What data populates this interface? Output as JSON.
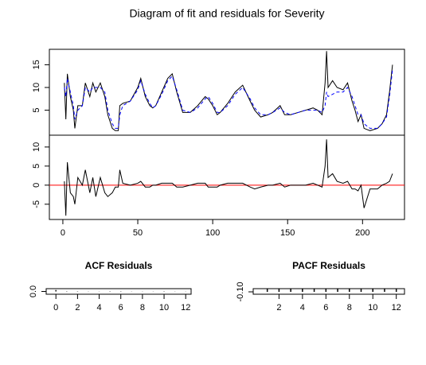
{
  "title": "Diagram of fit and residuals for Severity",
  "chart_data": [
    {
      "type": "line",
      "xlim": [
        -9,
        228
      ],
      "ylim": [
        -0.5,
        18.4
      ],
      "yticks": [
        5,
        10,
        15
      ],
      "x": [
        1,
        2,
        3,
        5,
        7,
        8,
        10,
        13,
        15,
        18,
        20,
        22,
        25,
        28,
        30,
        33,
        35,
        37,
        38,
        40,
        45,
        50,
        52,
        55,
        58,
        60,
        62,
        66,
        70,
        73,
        76,
        80,
        85,
        90,
        95,
        97,
        100,
        103,
        105,
        110,
        115,
        120,
        125,
        128,
        132,
        137,
        140,
        145,
        148,
        152,
        157,
        162,
        167,
        170,
        173,
        175,
        176,
        177,
        180,
        183,
        187,
        190,
        193,
        195,
        197,
        199,
        201,
        205,
        210,
        213,
        216,
        218,
        220
      ],
      "series": [
        {
          "color": "#000000",
          "dash": false,
          "values": [
            11,
            3,
            13,
            8,
            5,
            1,
            6,
            6,
            11,
            8,
            11,
            9,
            11,
            8,
            4,
            1,
            0.5,
            0.5,
            6,
            6.5,
            7,
            10,
            12,
            8,
            6,
            5.5,
            6,
            9,
            12,
            13,
            9,
            4.5,
            4.5,
            6,
            8,
            7.5,
            6,
            4,
            4.5,
            6.5,
            9,
            10.5,
            7,
            5,
            3.5,
            4,
            4.5,
            6,
            4,
            4,
            4.5,
            5,
            5.5,
            5,
            4,
            11,
            18,
            10,
            11.5,
            10,
            9.5,
            11,
            7,
            5,
            2.5,
            4,
            1,
            0.5,
            1,
            2,
            4,
            9,
            15
          ]
        },
        {
          "color": "#0000ff",
          "dash": true,
          "values": [
            10,
            8,
            12,
            9,
            6,
            3,
            5,
            6,
            10,
            9,
            10,
            10,
            10,
            9,
            5,
            2,
            1,
            1,
            4,
            6,
            7,
            9.5,
            11.5,
            8.5,
            6.5,
            5.5,
            6,
            8.5,
            11.5,
            12.5,
            9.5,
            5,
            4.5,
            5.5,
            7.5,
            8,
            6.5,
            4.5,
            4.5,
            6,
            8.5,
            10,
            7.5,
            5.5,
            4,
            4,
            4.5,
            5.5,
            4.5,
            4,
            4.5,
            5,
            5,
            5,
            4.5,
            6,
            9,
            8,
            8.5,
            9,
            9,
            10,
            8,
            6,
            4,
            4,
            2,
            1,
            1,
            2,
            3.5,
            8,
            14
          ]
        }
      ]
    },
    {
      "type": "line",
      "xlim": [
        -9,
        228
      ],
      "ylim": [
        -9,
        13.1
      ],
      "yticks": [
        -5,
        0,
        5,
        10
      ],
      "xticks": [
        0,
        50,
        100,
        150,
        200
      ],
      "reference_line": {
        "value": 0,
        "color": "#ff0000"
      },
      "x": [
        1,
        2,
        3,
        5,
        7,
        8,
        10,
        13,
        15,
        18,
        20,
        22,
        25,
        28,
        30,
        33,
        35,
        37,
        38,
        40,
        45,
        50,
        52,
        55,
        58,
        60,
        62,
        66,
        70,
        73,
        76,
        80,
        85,
        90,
        95,
        97,
        100,
        103,
        105,
        110,
        115,
        120,
        125,
        128,
        132,
        137,
        140,
        145,
        148,
        152,
        157,
        162,
        167,
        170,
        173,
        175,
        176,
        177,
        180,
        183,
        187,
        190,
        193,
        195,
        197,
        199,
        201,
        205,
        210,
        213,
        216,
        218,
        220
      ],
      "series": [
        {
          "color": "#000000",
          "dash": false,
          "values": [
            1,
            -8,
            6,
            -2,
            -3,
            -5,
            2,
            0,
            4,
            -2,
            2,
            -3,
            2,
            -2,
            -3,
            -2,
            -0.5,
            -0.5,
            4,
            0.5,
            0,
            0.5,
            1,
            -0.5,
            -0.5,
            0,
            0,
            0.5,
            0.5,
            0.5,
            -0.5,
            -0.5,
            0,
            0.5,
            0.5,
            -0.5,
            -0.5,
            -0.5,
            0,
            0.5,
            0.5,
            0.5,
            -0.5,
            -1,
            -0.5,
            0,
            0,
            0.5,
            -0.5,
            0,
            0,
            0,
            0.5,
            0,
            -0.5,
            5,
            12,
            2,
            3,
            1,
            0.5,
            1,
            -1,
            -1,
            -1.5,
            0,
            -6,
            -1,
            -1,
            0,
            0.5,
            1,
            3
          ]
        }
      ]
    },
    {
      "type": "bar",
      "title": "ACF Residuals",
      "xlim": [
        -0.9,
        12.5
      ],
      "ylim": [
        -0.02,
        0.02
      ],
      "xticks": [
        0,
        2,
        4,
        6,
        8,
        10,
        12
      ],
      "yticks": [
        {
          "value": 0,
          "label": "0.0"
        }
      ],
      "x": [
        0,
        1,
        2,
        3,
        4,
        5,
        6,
        7,
        8,
        9,
        10,
        11,
        12
      ],
      "color": "#000000",
      "values": [
        0.01,
        0.002,
        -0.002,
        0.001,
        -0.001,
        0.002,
        -0.002,
        0.001,
        0.001,
        -0.001,
        0.002,
        -0.001,
        0.001
      ]
    },
    {
      "type": "bar",
      "title": "PACF Residuals",
      "xlim": [
        -0.2,
        12.7
      ],
      "ylim": [
        -0.13,
        -0.06
      ],
      "xticks": [
        2,
        4,
        6,
        8,
        10,
        12
      ],
      "yticks": [
        {
          "value": -0.1,
          "label": "-0.10"
        }
      ],
      "x": [
        1,
        2,
        3,
        4,
        5,
        6,
        7,
        8,
        9,
        10,
        11,
        12
      ],
      "color": "#000000",
      "values": [
        -0.1,
        -0.1,
        -0.1,
        -0.1,
        -0.1,
        -0.1,
        -0.1,
        -0.1,
        -0.1,
        -0.1,
        -0.1,
        -0.1
      ]
    }
  ]
}
